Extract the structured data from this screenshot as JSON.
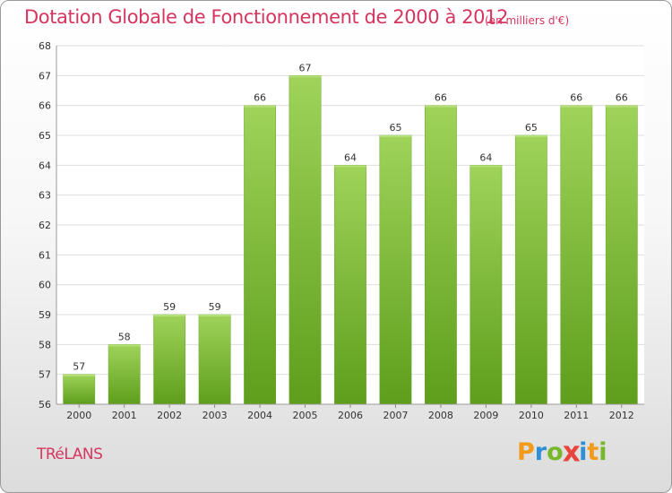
{
  "title": "Dotation Globale de Fonctionnement de 2000 à 2012",
  "subtitle": "(en milliers d'€)",
  "commune": "TRéLANS",
  "logo": {
    "letters": [
      "P",
      "r",
      "o",
      "x",
      "i",
      "t",
      "i"
    ],
    "colors": [
      "#f29a1a",
      "#2f8fd6",
      "#76b82a",
      "#e8453c",
      "#2f8fd6",
      "#f29a1a",
      "#76b82a"
    ]
  },
  "colors": {
    "bar": "#7fc13f",
    "bar_top": "#9fd35a",
    "bar_bottom": "#5e9e1c",
    "title": "#d6355f"
  },
  "chart_data": {
    "type": "bar",
    "categories": [
      "2000",
      "2001",
      "2002",
      "2003",
      "2004",
      "2005",
      "2006",
      "2007",
      "2008",
      "2009",
      "2010",
      "2011",
      "2012"
    ],
    "values": [
      57,
      58,
      59,
      59,
      66,
      67,
      64,
      65,
      66,
      64,
      65,
      66,
      66
    ],
    "ylim": [
      56,
      68
    ],
    "yticks": [
      56,
      57,
      58,
      59,
      60,
      61,
      62,
      63,
      64,
      65,
      66,
      67,
      68
    ],
    "grid": true,
    "legend": "none"
  }
}
